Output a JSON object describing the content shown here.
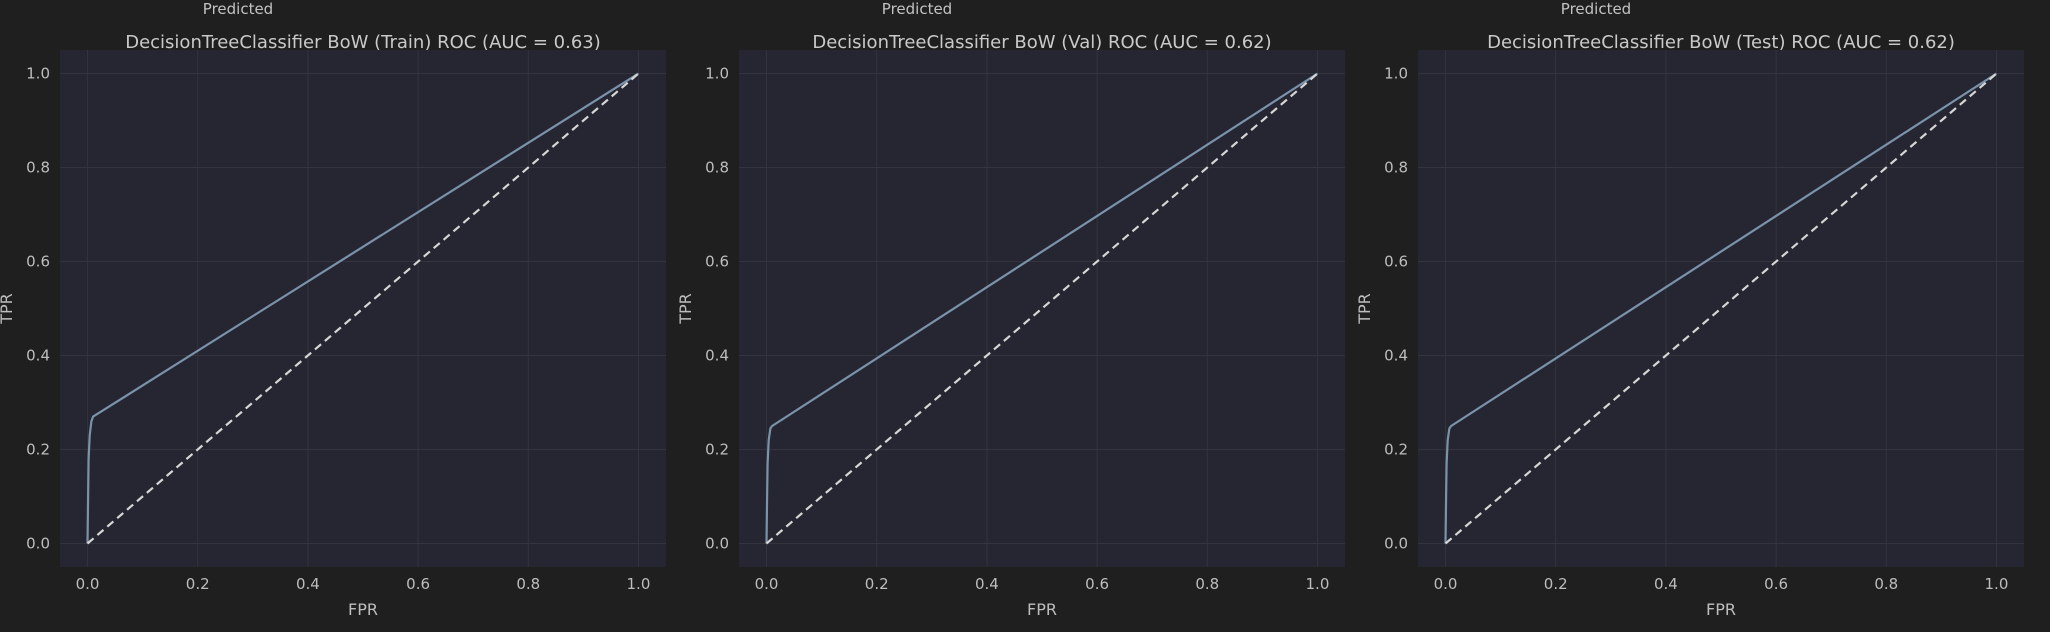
{
  "figure": {
    "background": "#1f1f1f",
    "plot_background": "#252631",
    "grid_color": "#33343d",
    "roc_color": "#7b93aa",
    "diagonal_color": "#d6d6d6",
    "text_color": "#c2c2c2"
  },
  "chart_data": [
    {
      "type": "line",
      "top_label": "Predicted",
      "title": "DecisionTreeClassifier BoW (Train) ROC (AUC = 0.63)",
      "xlabel": "FPR",
      "ylabel": "TPR",
      "xlim": [
        -0.05,
        1.05
      ],
      "ylim": [
        -0.05,
        1.05
      ],
      "xticks": [
        0.0,
        0.2,
        0.4,
        0.6,
        0.8,
        1.0
      ],
      "yticks": [
        0.0,
        0.2,
        0.4,
        0.6,
        0.8,
        1.0
      ],
      "tick_labels": [
        "0.0",
        "0.2",
        "0.4",
        "0.6",
        "0.8",
        "1.0"
      ],
      "grid": true,
      "series": [
        {
          "x": [
            0.0,
            0.001,
            0.002,
            0.004,
            0.007,
            0.01,
            1.0
          ],
          "y": [
            0.0,
            0.1,
            0.18,
            0.23,
            0.26,
            0.27,
            1.0
          ],
          "style": "solid"
        },
        {
          "x": [
            0.0,
            1.0
          ],
          "y": [
            0.0,
            1.0
          ],
          "style": "dashed"
        }
      ]
    },
    {
      "type": "line",
      "top_label": "Predicted",
      "title": "DecisionTreeClassifier BoW (Val) ROC (AUC = 0.62)",
      "xlabel": "FPR",
      "ylabel": "TPR",
      "xlim": [
        -0.05,
        1.05
      ],
      "ylim": [
        -0.05,
        1.05
      ],
      "xticks": [
        0.0,
        0.2,
        0.4,
        0.6,
        0.8,
        1.0
      ],
      "yticks": [
        0.0,
        0.2,
        0.4,
        0.6,
        0.8,
        1.0
      ],
      "tick_labels": [
        "0.0",
        "0.2",
        "0.4",
        "0.6",
        "0.8",
        "1.0"
      ],
      "grid": true,
      "series": [
        {
          "x": [
            0.0,
            0.001,
            0.002,
            0.004,
            0.007,
            0.01,
            1.0
          ],
          "y": [
            0.0,
            0.1,
            0.17,
            0.22,
            0.245,
            0.25,
            1.0
          ],
          "style": "solid"
        },
        {
          "x": [
            0.0,
            1.0
          ],
          "y": [
            0.0,
            1.0
          ],
          "style": "dashed"
        }
      ]
    },
    {
      "type": "line",
      "top_label": "Predicted",
      "title": "DecisionTreeClassifier BoW (Test) ROC (AUC = 0.62)",
      "xlabel": "FPR",
      "ylabel": "TPR",
      "xlim": [
        -0.05,
        1.05
      ],
      "ylim": [
        -0.05,
        1.05
      ],
      "xticks": [
        0.0,
        0.2,
        0.4,
        0.6,
        0.8,
        1.0
      ],
      "yticks": [
        0.0,
        0.2,
        0.4,
        0.6,
        0.8,
        1.0
      ],
      "tick_labels": [
        "0.0",
        "0.2",
        "0.4",
        "0.6",
        "0.8",
        "1.0"
      ],
      "grid": true,
      "series": [
        {
          "x": [
            0.0,
            0.001,
            0.002,
            0.004,
            0.007,
            0.01,
            1.0
          ],
          "y": [
            0.0,
            0.1,
            0.17,
            0.22,
            0.245,
            0.25,
            1.0
          ],
          "style": "solid"
        },
        {
          "x": [
            0.0,
            1.0
          ],
          "y": [
            0.0,
            1.0
          ],
          "style": "dashed"
        }
      ]
    }
  ]
}
